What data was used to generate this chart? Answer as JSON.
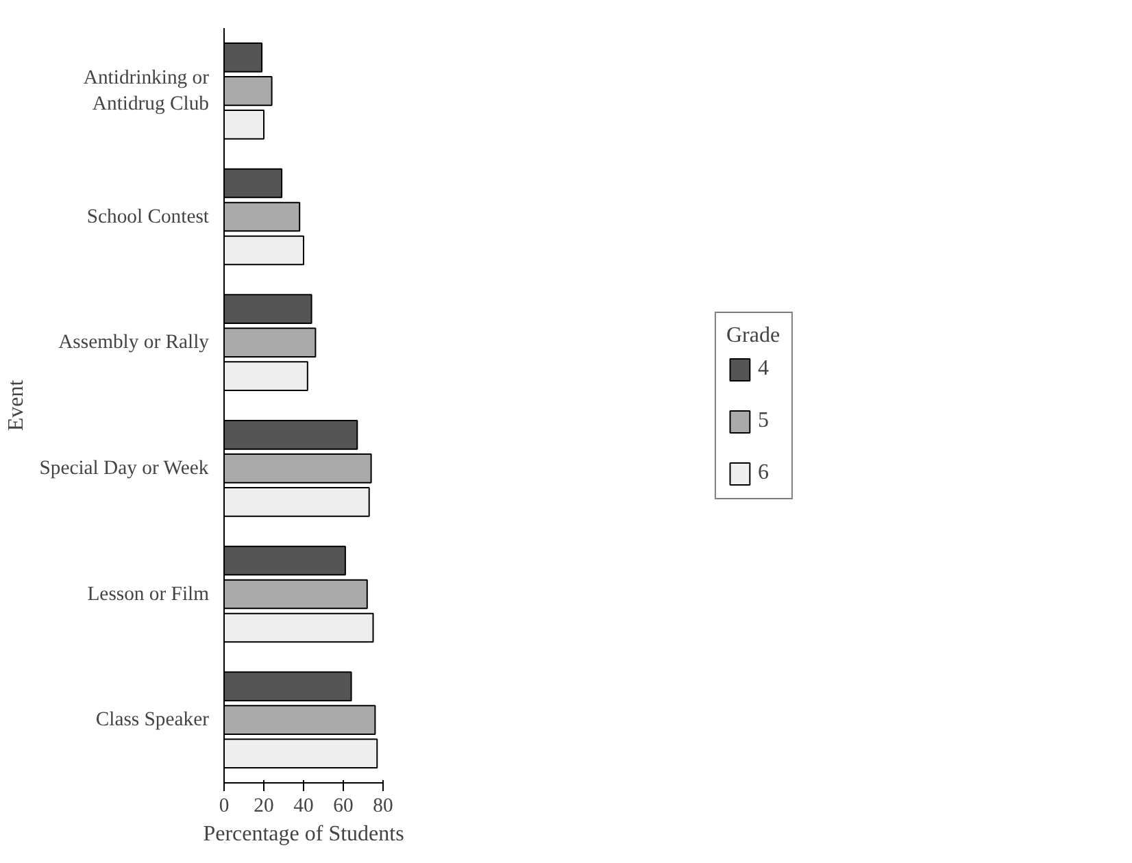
{
  "chart_data": {
    "type": "bar",
    "orientation": "horizontal",
    "xlabel": "Percentage of Students",
    "ylabel": "Event",
    "legend_title": "Grade",
    "legend": "right",
    "grid": false,
    "categories": [
      "Antidrinking or Antidrug Club",
      "School Contest",
      "Assembly or Rally",
      "Special Day or Week",
      "Lesson or Film",
      "Class Speaker"
    ],
    "series": [
      {
        "name": "4",
        "color": "#555555",
        "values": [
          19,
          29,
          44,
          67,
          61,
          64
        ]
      },
      {
        "name": "5",
        "color": "#aaaaaa",
        "values": [
          24,
          38,
          46,
          74,
          72,
          76
        ]
      },
      {
        "name": "6",
        "color": "#eeeeee",
        "values": [
          20,
          40,
          42,
          73,
          75,
          77
        ]
      }
    ],
    "xlim": [
      0,
      80
    ],
    "xticks": [
      0,
      20,
      40,
      60,
      80
    ]
  }
}
